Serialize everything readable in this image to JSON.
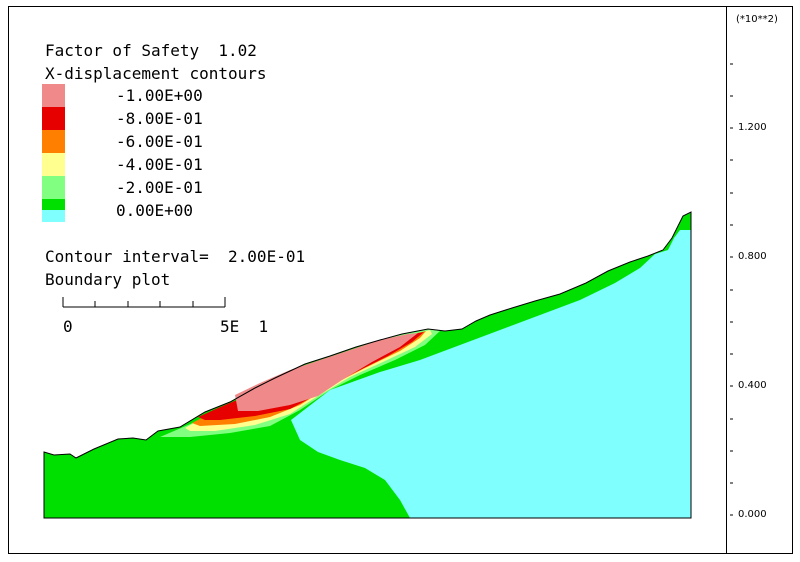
{
  "header": {
    "factor_of_safety_label": "Factor of Safety",
    "factor_of_safety_value": "1.02",
    "contour_title": "X-displacement contours"
  },
  "legend": [
    {
      "label": "-1.00E+00",
      "color": "#f08a8a"
    },
    {
      "label": "-8.00E-01",
      "color": "#e60000"
    },
    {
      "label": "-6.00E-01",
      "color": "#ff8000"
    },
    {
      "label": "-4.00E-01",
      "color": "#ffff90"
    },
    {
      "label": "-2.00E-01",
      "color": "#80ff80"
    },
    {
      "label": "0.00E+00",
      "color": "#00e000"
    }
  ],
  "legend_bottom_color": "#80ffff",
  "footer": {
    "contour_interval_label": "Contour interval=",
    "contour_interval_value": "2.00E-01",
    "boundary_plot_label": "Boundary plot"
  },
  "scale_bar": {
    "start_label": "0",
    "end_label": "5E  1"
  },
  "y_axis": {
    "multiplier": "(*10**2)",
    "labels": [
      "1.200",
      "0.800",
      "0.400",
      "0.000"
    ]
  },
  "colors": {
    "stable": "#80ffff",
    "displaced_low": "#00e000",
    "displaced_mid": "#80ff80",
    "displaced_yellow": "#ffff90",
    "displaced_orange": "#ff8000",
    "displaced_red": "#e60000",
    "displaced_max": "#f08a8a"
  }
}
